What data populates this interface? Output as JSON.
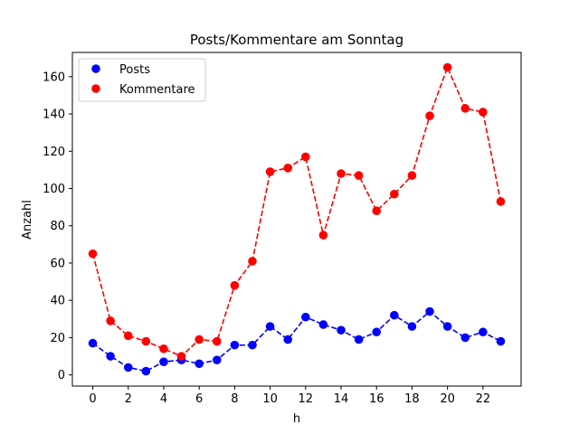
{
  "chart_data": {
    "type": "line",
    "title": "Posts/Kommentare am Sonntag",
    "xlabel": "h",
    "ylabel": "Anzahl",
    "x": [
      0,
      1,
      2,
      3,
      4,
      5,
      6,
      7,
      8,
      9,
      10,
      11,
      12,
      13,
      14,
      15,
      16,
      17,
      18,
      19,
      20,
      21,
      22,
      23
    ],
    "xlim": [
      -1.15,
      24.15
    ],
    "ylim": [
      -6,
      173
    ],
    "xticks": [
      0,
      2,
      4,
      6,
      8,
      10,
      12,
      14,
      16,
      18,
      20,
      22
    ],
    "yticks": [
      0,
      20,
      40,
      60,
      80,
      100,
      120,
      140,
      160
    ],
    "grid": false,
    "legend": {
      "placement": "top-left"
    },
    "series": [
      {
        "name": "Posts",
        "color": "#0000ff",
        "linestyle": "dashed",
        "marker": "circle",
        "values": [
          17,
          10,
          4,
          2,
          7,
          8,
          6,
          8,
          16,
          16,
          26,
          19,
          31,
          27,
          24,
          19,
          23,
          32,
          26,
          34,
          26,
          20,
          23,
          18
        ]
      },
      {
        "name": "Kommentare",
        "color": "#ff0000",
        "linestyle": "dashed",
        "marker": "circle",
        "values": [
          65,
          29,
          21,
          18,
          14,
          10,
          19,
          18,
          48,
          61,
          109,
          111,
          117,
          75,
          108,
          107,
          88,
          97,
          107,
          139,
          165,
          143,
          141,
          93
        ]
      }
    ]
  }
}
